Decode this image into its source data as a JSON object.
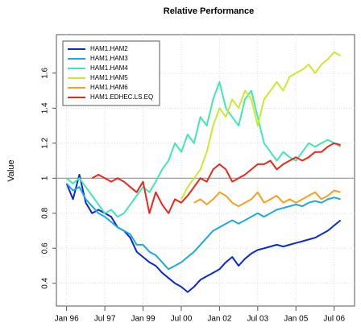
{
  "chart_data": {
    "type": "line",
    "title": "Relative Performance",
    "y_label": "Value",
    "x": [
      1996,
      1996.25,
      1996.5,
      1996.75,
      1997,
      1997.25,
      1997.5,
      1997.75,
      1998,
      1998.25,
      1998.5,
      1998.75,
      1999,
      1999.25,
      1999.5,
      1999.75,
      2000,
      2000.25,
      2000.5,
      2000.75,
      2001,
      2001.25,
      2001.5,
      2001.75,
      2002,
      2002.25,
      2002.5,
      2002.75,
      2003,
      2003.25,
      2003.5,
      2003.75,
      2004,
      2004.25,
      2004.5,
      2004.75,
      2005,
      2005.25,
      2005.5,
      2005.75,
      2006,
      2006.25,
      2006.5,
      2006.75
    ],
    "xlim": [
      1995.6,
      2007.3
    ],
    "xticks": [
      {
        "value": 1996,
        "label": "Jan 96"
      },
      {
        "value": 1997.5,
        "label": "Jul 97"
      },
      {
        "value": 1999,
        "label": "Jan 99"
      },
      {
        "value": 2000.5,
        "label": "Jul 00"
      },
      {
        "value": 2002,
        "label": "Jan 02"
      },
      {
        "value": 2003.5,
        "label": "Jul 03"
      },
      {
        "value": 2005,
        "label": "Jan 05"
      },
      {
        "value": 2006.5,
        "label": "Jul 06"
      }
    ],
    "ylim": [
      0.27,
      1.82
    ],
    "yticks": [
      0.4,
      0.6,
      0.8,
      1.0,
      1.2,
      1.4,
      1.6
    ],
    "reference_line": 1.0,
    "grid": true,
    "legend": "topleft",
    "series": [
      {
        "name": "HAM1.HAM2",
        "color": "#0a28d8",
        "values": [
          0.97,
          0.88,
          1.02,
          0.86,
          0.8,
          0.82,
          0.8,
          0.78,
          0.72,
          0.7,
          0.66,
          0.58,
          0.55,
          0.52,
          0.5,
          0.46,
          0.43,
          0.4,
          0.38,
          0.35,
          0.38,
          0.42,
          0.44,
          0.46,
          0.48,
          0.52,
          0.55,
          0.5,
          0.54,
          0.57,
          0.59,
          0.6,
          0.61,
          0.62,
          0.61,
          0.62,
          0.63,
          0.64,
          0.65,
          0.66,
          0.68,
          0.7,
          0.73,
          0.76
        ]
      },
      {
        "name": "HAM1.HAM3",
        "color": "#1fa8e0",
        "values": [
          0.97,
          0.93,
          0.95,
          0.88,
          0.84,
          0.8,
          0.78,
          0.75,
          0.72,
          0.7,
          0.68,
          0.62,
          0.62,
          0.58,
          0.56,
          0.52,
          0.48,
          0.5,
          0.52,
          0.55,
          0.58,
          0.62,
          0.66,
          0.7,
          0.72,
          0.74,
          0.76,
          0.74,
          0.76,
          0.78,
          0.8,
          0.78,
          0.8,
          0.82,
          0.83,
          0.84,
          0.85,
          0.84,
          0.86,
          0.87,
          0.86,
          0.88,
          0.89,
          0.88
        ]
      },
      {
        "name": "HAM1.HAM4",
        "color": "#40e8b0",
        "values": [
          1.0,
          0.97,
          1.0,
          0.95,
          0.9,
          0.85,
          0.8,
          0.82,
          0.78,
          0.8,
          0.85,
          0.9,
          0.95,
          0.92,
          0.98,
          1.05,
          1.1,
          1.2,
          1.15,
          1.25,
          1.2,
          1.35,
          1.3,
          1.45,
          1.55,
          1.4,
          1.35,
          1.3,
          1.45,
          1.5,
          1.35,
          1.2,
          1.15,
          1.1,
          1.15,
          1.12,
          1.1,
          1.15,
          1.2,
          1.18,
          1.2,
          1.22,
          1.2,
          1.18
        ]
      },
      {
        "name": "HAM1.HAM5",
        "color": "#c8ea34",
        "values": [
          null,
          null,
          null,
          null,
          null,
          null,
          null,
          null,
          null,
          null,
          null,
          null,
          null,
          null,
          null,
          null,
          null,
          null,
          0.88,
          0.95,
          1.0,
          1.05,
          1.15,
          1.3,
          1.4,
          1.35,
          1.45,
          1.4,
          1.5,
          1.45,
          1.3,
          1.45,
          1.5,
          1.55,
          1.5,
          1.58,
          1.6,
          1.62,
          1.65,
          1.6,
          1.65,
          1.68,
          1.72,
          1.7
        ]
      },
      {
        "name": "HAM1.HAM6",
        "color": "#f5a020",
        "values": [
          null,
          null,
          null,
          null,
          null,
          null,
          null,
          null,
          null,
          null,
          null,
          null,
          null,
          null,
          null,
          null,
          null,
          null,
          null,
          null,
          0.86,
          0.88,
          0.85,
          0.88,
          0.92,
          0.9,
          0.86,
          0.84,
          0.86,
          0.88,
          0.92,
          0.86,
          0.88,
          0.9,
          0.86,
          0.88,
          0.86,
          0.88,
          0.9,
          0.92,
          0.88,
          0.9,
          0.93,
          0.92
        ]
      },
      {
        "name": "HAM1.EDHEC.LS.EQ",
        "color": "#e8281e",
        "values": [
          null,
          null,
          null,
          null,
          1.0,
          1.02,
          1.0,
          0.98,
          1.0,
          0.98,
          0.95,
          0.92,
          0.98,
          0.8,
          0.92,
          0.85,
          0.8,
          0.88,
          0.86,
          0.9,
          0.95,
          1.0,
          0.98,
          1.05,
          1.08,
          1.05,
          0.98,
          1.0,
          1.02,
          1.05,
          1.08,
          1.08,
          1.1,
          1.05,
          1.08,
          1.1,
          1.12,
          1.1,
          1.12,
          1.15,
          1.15,
          1.18,
          1.2,
          1.19
        ]
      }
    ]
  }
}
